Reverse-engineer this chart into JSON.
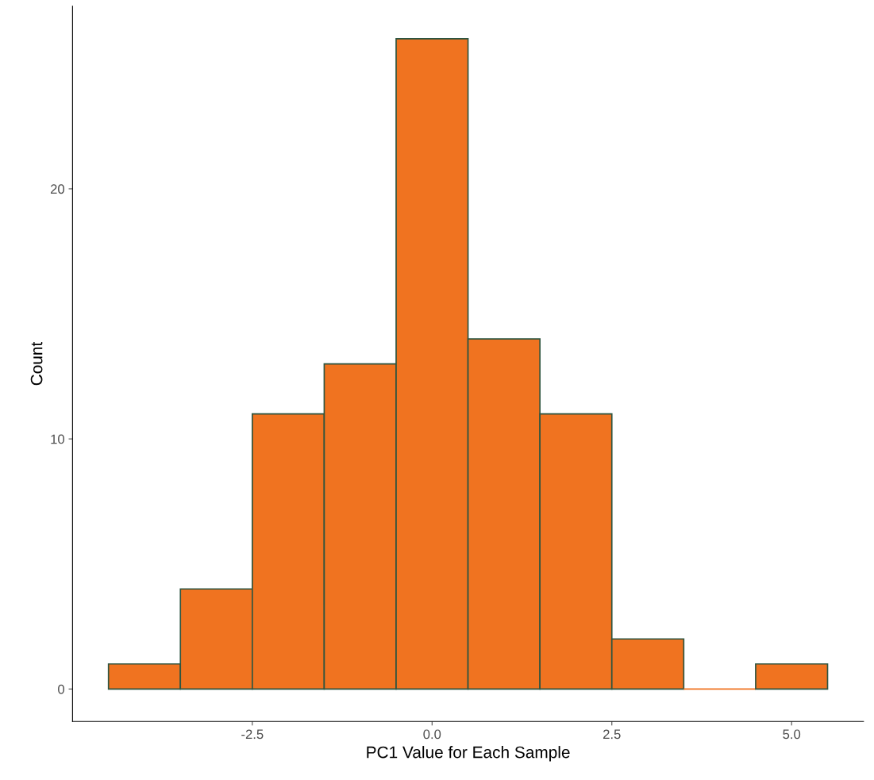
{
  "chart_data": {
    "type": "histogram",
    "xlabel": "PC1 Value for Each Sample",
    "ylabel": "Count",
    "bins": [
      -4.5,
      -3.5,
      -2.5,
      -1.5,
      -0.5,
      0.5,
      1.5,
      2.5,
      3.5,
      4.5,
      5.5
    ],
    "values": [
      1,
      4,
      11,
      13,
      26,
      14,
      11,
      2,
      0,
      1
    ],
    "color": "#f07320",
    "xlim": [
      -5.0,
      6.0
    ],
    "ylim": [
      -1.3,
      27.3
    ],
    "xticks": [
      {
        "value": -2.5,
        "label": "-2.5"
      },
      {
        "value": 0,
        "label": "0.0"
      },
      {
        "value": 2.5,
        "label": "2.5"
      },
      {
        "value": 5,
        "label": "5.0"
      }
    ],
    "yticks": [
      0,
      10,
      20
    ],
    "grid": false
  }
}
